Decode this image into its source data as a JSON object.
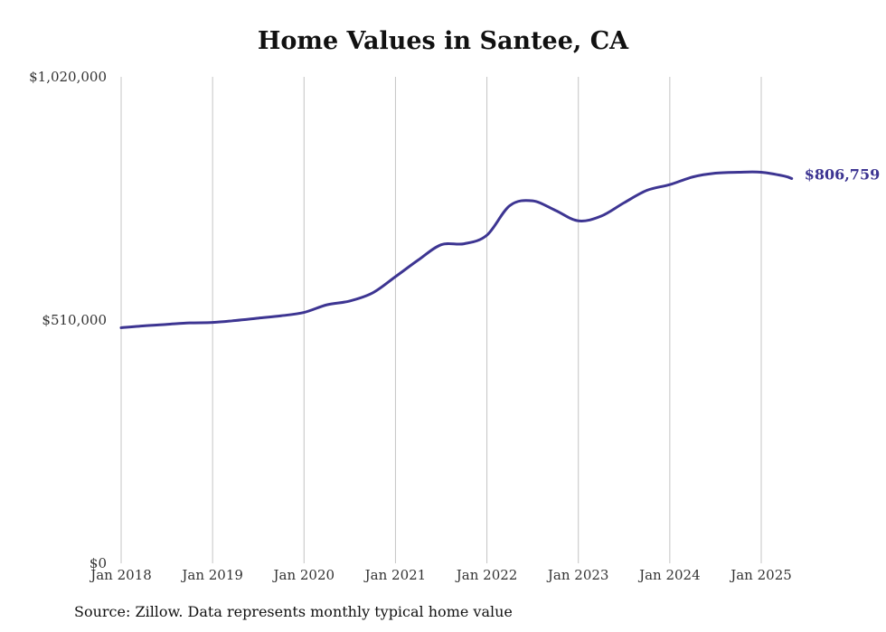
{
  "chart_data": {
    "type": "line",
    "title": "Home Values in Santee, CA",
    "source": "Source: Zillow. Data represents monthly typical home value",
    "xlabel": "",
    "ylabel": "",
    "ylim": [
      0,
      1020000
    ],
    "y_ticks": [
      {
        "value": 0,
        "label": "$0"
      },
      {
        "value": 510000,
        "label": "$510,000"
      },
      {
        "value": 1020000,
        "label": "$1,020,000"
      }
    ],
    "x_ticks": [
      {
        "value": "2018-01",
        "label": "Jan 2018"
      },
      {
        "value": "2019-01",
        "label": "Jan 2019"
      },
      {
        "value": "2020-01",
        "label": "Jan 2020"
      },
      {
        "value": "2021-01",
        "label": "Jan 2021"
      },
      {
        "value": "2022-01",
        "label": "Jan 2022"
      },
      {
        "value": "2023-01",
        "label": "Jan 2023"
      },
      {
        "value": "2024-01",
        "label": "Jan 2024"
      },
      {
        "value": "2025-01",
        "label": "Jan 2025"
      }
    ],
    "grid": "vertical",
    "line_color": "#3d3592",
    "series": [
      {
        "end_label": "$806,759",
        "points": [
          [
            "2018-01",
            494000
          ],
          [
            "2018-04",
            498000
          ],
          [
            "2018-07",
            501000
          ],
          [
            "2018-10",
            504000
          ],
          [
            "2019-01",
            505000
          ],
          [
            "2019-04",
            509000
          ],
          [
            "2019-07",
            514000
          ],
          [
            "2019-10",
            519000
          ],
          [
            "2020-01",
            526000
          ],
          [
            "2020-04",
            542000
          ],
          [
            "2020-07",
            550000
          ],
          [
            "2020-10",
            567000
          ],
          [
            "2021-01",
            601000
          ],
          [
            "2021-04",
            636000
          ],
          [
            "2021-07",
            668000
          ],
          [
            "2021-10",
            670000
          ],
          [
            "2022-01",
            688000
          ],
          [
            "2022-04",
            750000
          ],
          [
            "2022-07",
            760000
          ],
          [
            "2022-10",
            740000
          ],
          [
            "2023-01",
            718000
          ],
          [
            "2023-04",
            728000
          ],
          [
            "2023-07",
            756000
          ],
          [
            "2023-10",
            782000
          ],
          [
            "2024-01",
            794000
          ],
          [
            "2024-04",
            810000
          ],
          [
            "2024-07",
            818000
          ],
          [
            "2024-10",
            820000
          ],
          [
            "2025-01",
            820000
          ],
          [
            "2025-04",
            812000
          ],
          [
            "2025-05",
            806759
          ]
        ]
      }
    ]
  }
}
